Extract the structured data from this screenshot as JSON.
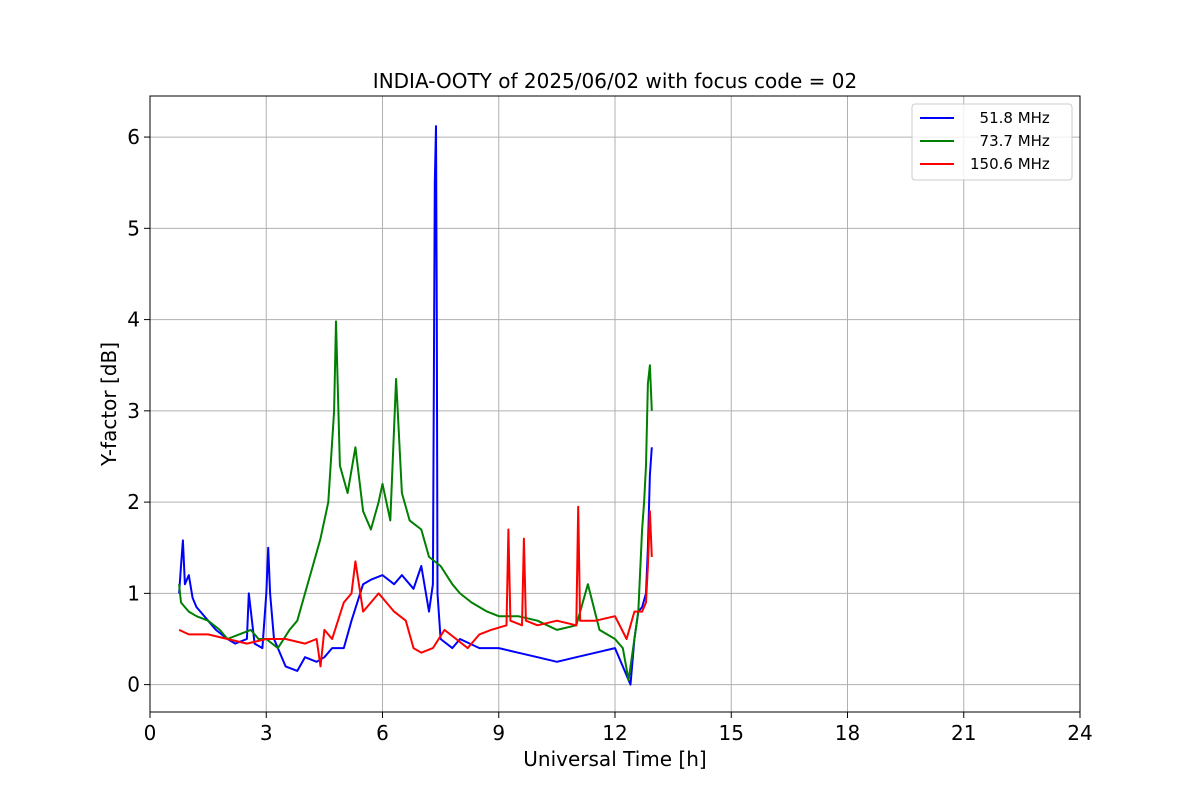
{
  "chart_data": {
    "type": "line",
    "title": "INDIA-OOTY of 2025/06/02 with focus code = 02",
    "xlabel": "Universal Time [h]",
    "ylabel": "Y-factor [dB]",
    "xlim": [
      0,
      24
    ],
    "ylim": [
      -0.3,
      6.45
    ],
    "xticks": [
      0,
      3,
      6,
      9,
      12,
      15,
      18,
      21,
      24
    ],
    "yticks": [
      0,
      1,
      2,
      3,
      4,
      5,
      6
    ],
    "grid": true,
    "legend_position": "top-right",
    "series": [
      {
        "name": " 51.8 MHz",
        "color": "#0000ff",
        "x": [
          0.75,
          0.8,
          0.85,
          0.9,
          1.0,
          1.1,
          1.2,
          1.3,
          1.5,
          1.7,
          2.0,
          2.2,
          2.5,
          2.55,
          2.7,
          2.9,
          3.0,
          3.05,
          3.1,
          3.2,
          3.5,
          3.8,
          4.0,
          4.3,
          4.5,
          4.7,
          5.0,
          5.2,
          5.5,
          5.7,
          6.0,
          6.3,
          6.5,
          6.8,
          7.0,
          7.2,
          7.3,
          7.35,
          7.38,
          7.4,
          7.42,
          7.5,
          7.8,
          8.0,
          8.5,
          9.0,
          9.5,
          10.0,
          10.5,
          11.0,
          11.5,
          12.0,
          12.2,
          12.4,
          12.5,
          12.6,
          12.7,
          12.8,
          12.85,
          12.9,
          12.95
        ],
        "y": [
          1.0,
          1.3,
          1.58,
          1.1,
          1.2,
          0.95,
          0.85,
          0.8,
          0.7,
          0.6,
          0.5,
          0.45,
          0.5,
          1.0,
          0.45,
          0.4,
          1.0,
          1.5,
          1.0,
          0.5,
          0.2,
          0.15,
          0.3,
          0.25,
          0.3,
          0.4,
          0.4,
          0.7,
          1.1,
          1.15,
          1.2,
          1.1,
          1.2,
          1.05,
          1.3,
          0.8,
          1.1,
          5.5,
          6.12,
          4.0,
          1.0,
          0.5,
          0.4,
          0.5,
          0.4,
          0.4,
          0.35,
          0.3,
          0.25,
          0.3,
          0.35,
          0.4,
          0.2,
          0.0,
          0.5,
          0.8,
          0.85,
          1.0,
          1.5,
          2.3,
          2.6
        ]
      },
      {
        "name": " 73.7 MHz",
        "color": "#008000",
        "x": [
          0.75,
          0.8,
          0.9,
          1.0,
          1.2,
          1.5,
          1.8,
          2.0,
          2.3,
          2.6,
          2.8,
          3.0,
          3.3,
          3.6,
          3.8,
          4.0,
          4.2,
          4.4,
          4.6,
          4.75,
          4.8,
          4.9,
          5.1,
          5.3,
          5.5,
          5.7,
          5.9,
          6.0,
          6.2,
          6.35,
          6.5,
          6.7,
          7.0,
          7.2,
          7.5,
          7.8,
          8.0,
          8.3,
          8.7,
          9.0,
          9.5,
          10.0,
          10.5,
          11.0,
          11.3,
          11.6,
          12.0,
          12.2,
          12.35,
          12.5,
          12.6,
          12.7,
          12.75,
          12.8,
          12.85,
          12.9,
          12.95
        ],
        "y": [
          1.1,
          0.9,
          0.85,
          0.8,
          0.75,
          0.7,
          0.6,
          0.5,
          0.55,
          0.6,
          0.5,
          0.5,
          0.4,
          0.6,
          0.7,
          1.0,
          1.3,
          1.6,
          2.0,
          3.0,
          3.98,
          2.4,
          2.1,
          2.6,
          1.9,
          1.7,
          2.0,
          2.2,
          1.8,
          3.35,
          2.1,
          1.8,
          1.7,
          1.4,
          1.3,
          1.1,
          1.0,
          0.9,
          0.8,
          0.75,
          0.75,
          0.7,
          0.6,
          0.65,
          1.1,
          0.6,
          0.5,
          0.4,
          0.05,
          0.5,
          0.8,
          1.7,
          2.0,
          2.4,
          3.3,
          3.5,
          3.0
        ]
      },
      {
        "name": "150.6 MHz",
        "color": "#ff0000",
        "x": [
          0.75,
          1.0,
          1.5,
          2.0,
          2.5,
          3.0,
          3.5,
          4.0,
          4.3,
          4.4,
          4.5,
          4.7,
          5.0,
          5.2,
          5.3,
          5.5,
          5.7,
          5.9,
          6.0,
          6.3,
          6.6,
          6.8,
          7.0,
          7.3,
          7.6,
          7.9,
          8.2,
          8.5,
          8.8,
          9.2,
          9.25,
          9.3,
          9.6,
          9.65,
          9.7,
          10.0,
          10.5,
          11.0,
          11.05,
          11.1,
          11.5,
          12.0,
          12.3,
          12.5,
          12.7,
          12.8,
          12.85,
          12.9,
          12.95
        ],
        "y": [
          0.6,
          0.55,
          0.55,
          0.5,
          0.45,
          0.5,
          0.5,
          0.45,
          0.5,
          0.2,
          0.6,
          0.5,
          0.9,
          1.0,
          1.35,
          0.8,
          0.9,
          1.0,
          0.95,
          0.8,
          0.7,
          0.4,
          0.35,
          0.4,
          0.6,
          0.5,
          0.4,
          0.55,
          0.6,
          0.65,
          1.7,
          0.7,
          0.65,
          1.6,
          0.7,
          0.65,
          0.7,
          0.65,
          1.95,
          0.7,
          0.7,
          0.75,
          0.5,
          0.8,
          0.8,
          0.9,
          1.3,
          1.9,
          1.4
        ]
      }
    ]
  }
}
